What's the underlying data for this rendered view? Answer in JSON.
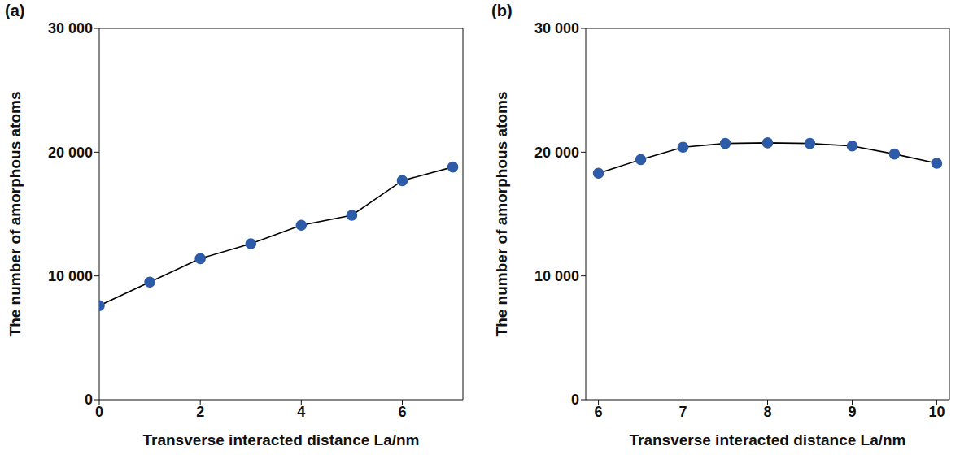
{
  "chart_data": [
    {
      "type": "line",
      "title": "(a)",
      "x_label": "Transverse interacted distance La/nm",
      "y_label": "The number of amorphous atoms",
      "x": [
        0,
        1,
        2,
        3,
        4,
        5,
        6,
        7
      ],
      "series": [
        {
          "name": "amorphous atoms",
          "color": "#2e5ba8",
          "marker": "circle",
          "line_style": "solid",
          "values": [
            7600,
            9500,
            11400,
            12600,
            14100,
            14900,
            17700,
            18800
          ]
        }
      ],
      "xlim": [
        0,
        7.2
      ],
      "xticks": [
        0,
        2,
        4,
        6
      ],
      "ylim": [
        0,
        30000
      ],
      "yticks": [
        0,
        {
          "value": 10000,
          "label": "10 000"
        },
        {
          "value": 20000,
          "label": "20 000"
        },
        {
          "value": 30000,
          "label": "30 000"
        }
      ],
      "grid": false
    },
    {
      "type": "line",
      "title": "(b)",
      "x_label": "Transverse interacted distance La/nm",
      "y_label": "The number of amorphous atoms",
      "x": [
        6,
        6.5,
        7,
        7.5,
        8,
        8.5,
        9,
        9.5,
        10
      ],
      "series": [
        {
          "name": "amorphous atoms",
          "color": "#2e5ba8",
          "marker": "circle",
          "line_style": "solid",
          "values": [
            18300,
            19400,
            20400,
            20700,
            20750,
            20700,
            20500,
            19850,
            19100
          ]
        }
      ],
      "xlim": [
        5.85,
        10.15
      ],
      "xticks": [
        6,
        7,
        8,
        9,
        10
      ],
      "ylim": [
        0,
        30000
      ],
      "yticks": [
        0,
        {
          "value": 10000,
          "label": "10 000"
        },
        {
          "value": 20000,
          "label": "20 000"
        },
        {
          "value": 30000,
          "label": "30 000"
        }
      ],
      "grid": false
    }
  ]
}
